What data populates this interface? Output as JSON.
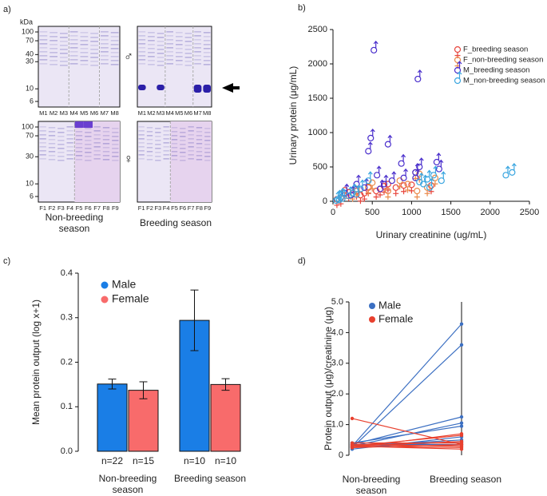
{
  "gel": {
    "panel": "a)",
    "unit": "kDa",
    "top_markers": [
      100,
      70,
      40,
      30,
      10,
      6
    ],
    "bottom_markers": [
      100,
      70,
      30,
      10,
      6
    ],
    "male_symbol": "♂",
    "female_symbol": "♀",
    "male_lanes": [
      "M1",
      "M2",
      "M3",
      "M4",
      "M5",
      "M6",
      "M7",
      "M8"
    ],
    "female_lanes": [
      "F1",
      "F2",
      "F3",
      "F4",
      "F5",
      "F6",
      "F7",
      "F8",
      "F9"
    ],
    "captions": [
      "Non-breeding season",
      "Breeding season"
    ]
  },
  "chart_data": [
    {
      "type": "scatter",
      "panel": "b)",
      "x_label": "Urinary creatinine (ug/mL)",
      "y_label": "Urinary protein (μg/mL)",
      "xlim": [
        0,
        2500
      ],
      "xticks": [
        0,
        500,
        1000,
        1500,
        2000,
        2500
      ],
      "ylim": [
        0,
        2500
      ],
      "yticks": [
        0,
        500,
        1000,
        1500,
        2000,
        2500
      ],
      "legend": "upper right",
      "series": [
        {
          "name": "F_breeding season",
          "color": "#e8453c",
          "marker": "female",
          "x": [
            150,
            200,
            300,
            400,
            600,
            700,
            800,
            900,
            1000,
            1250,
            450,
            350,
            100,
            50,
            550,
            650
          ],
          "values": [
            160,
            130,
            150,
            120,
            180,
            250,
            200,
            230,
            240,
            230,
            200,
            90,
            50,
            30,
            150,
            220
          ]
        },
        {
          "name": "F_non-breeding season",
          "color": "#ea8a4a",
          "marker": "female",
          "x": [
            1050,
            1100,
            1070,
            1200,
            1300,
            500,
            450,
            300,
            250,
            700,
            850,
            950
          ],
          "values": [
            420,
            400,
            150,
            200,
            340,
            270,
            210,
            180,
            120,
            150,
            300,
            250
          ]
        },
        {
          "name": "M_breeding season",
          "color": "#4a2fcc",
          "marker": "male",
          "x": [
            520,
            1080,
            480,
            700,
            450,
            1320,
            870,
            1100,
            1050,
            560,
            750,
            300,
            400,
            600,
            150,
            230,
            900,
            1350,
            1050,
            650
          ],
          "values": [
            2200,
            1780,
            920,
            830,
            730,
            570,
            550,
            500,
            420,
            380,
            300,
            250,
            200,
            180,
            120,
            90,
            340,
            470,
            340,
            250
          ]
        },
        {
          "name": "M_non-breeding season",
          "color": "#3aa6e0",
          "marker": "male",
          "x": [
            2200,
            2280,
            1200,
            1280,
            1380,
            1150,
            450,
            350,
            100,
            60,
            80,
            120,
            40,
            200,
            300,
            250,
            1230,
            1100
          ],
          "values": [
            380,
            420,
            320,
            380,
            300,
            250,
            300,
            180,
            60,
            30,
            20,
            40,
            10,
            80,
            100,
            120,
            200,
            280
          ]
        }
      ]
    },
    {
      "type": "bar",
      "panel": "c)",
      "y_label": "Mean protein output (log x+1)",
      "categories": [
        "Non-breeding season",
        "Breeding season"
      ],
      "ylim": [
        0,
        0.4
      ],
      "yticks": [
        {
          "value": 0,
          "label": "0.0"
        },
        0.1,
        0.2,
        0.3,
        0.4
      ],
      "legend": "upper left",
      "series": [
        {
          "name": "Male",
          "color": "#1a7ee6",
          "values": [
            0.151,
            0.294
          ],
          "errors": [
            0.011,
            0.068
          ],
          "n_labels": [
            "n=22",
            "n=10"
          ]
        },
        {
          "name": "Female",
          "color": "#f86b6b",
          "values": [
            0.137,
            0.15
          ],
          "errors": [
            0.019,
            0.013
          ],
          "n_labels": [
            "n=15",
            "n=10"
          ]
        }
      ]
    },
    {
      "type": "paired",
      "panel": "d)",
      "y_label": "Protein output (μg)/creatinine (μg)",
      "categories": [
        "Non-breeding season",
        "Breeding season"
      ],
      "ylim": [
        0,
        5
      ],
      "yticks": [
        0,
        {
          "value": 1,
          "label": "1.0"
        },
        {
          "value": 2,
          "label": "2.0"
        },
        {
          "value": 3,
          "label": "3.0"
        },
        {
          "value": 4,
          "label": "4.0"
        },
        {
          "value": 5,
          "label": "5.0"
        }
      ],
      "legend": "upper left",
      "series": [
        {
          "name": "Male",
          "color": "#3b6fc2",
          "lines": [
            [
              0.3,
              4.28
            ],
            [
              0.25,
              3.6
            ],
            [
              0.35,
              1.25
            ],
            [
              0.3,
              1.05
            ],
            [
              0.4,
              0.95
            ],
            [
              0.2,
              0.6
            ],
            [
              0.3,
              0.5
            ],
            [
              0.25,
              0.45
            ],
            [
              0.4,
              0.4
            ],
            [
              0.35,
              0.35
            ]
          ]
        },
        {
          "name": "Female",
          "color": "#e8402e",
          "lines": [
            [
              1.2,
              0.35
            ],
            [
              0.3,
              0.65
            ],
            [
              0.25,
              0.7
            ],
            [
              0.3,
              0.45
            ],
            [
              0.35,
              0.3
            ],
            [
              0.3,
              0.25
            ],
            [
              0.4,
              0.4
            ],
            [
              0.25,
              0.35
            ],
            [
              0.3,
              0.2
            ],
            [
              0.35,
              0.3
            ]
          ]
        }
      ]
    }
  ]
}
